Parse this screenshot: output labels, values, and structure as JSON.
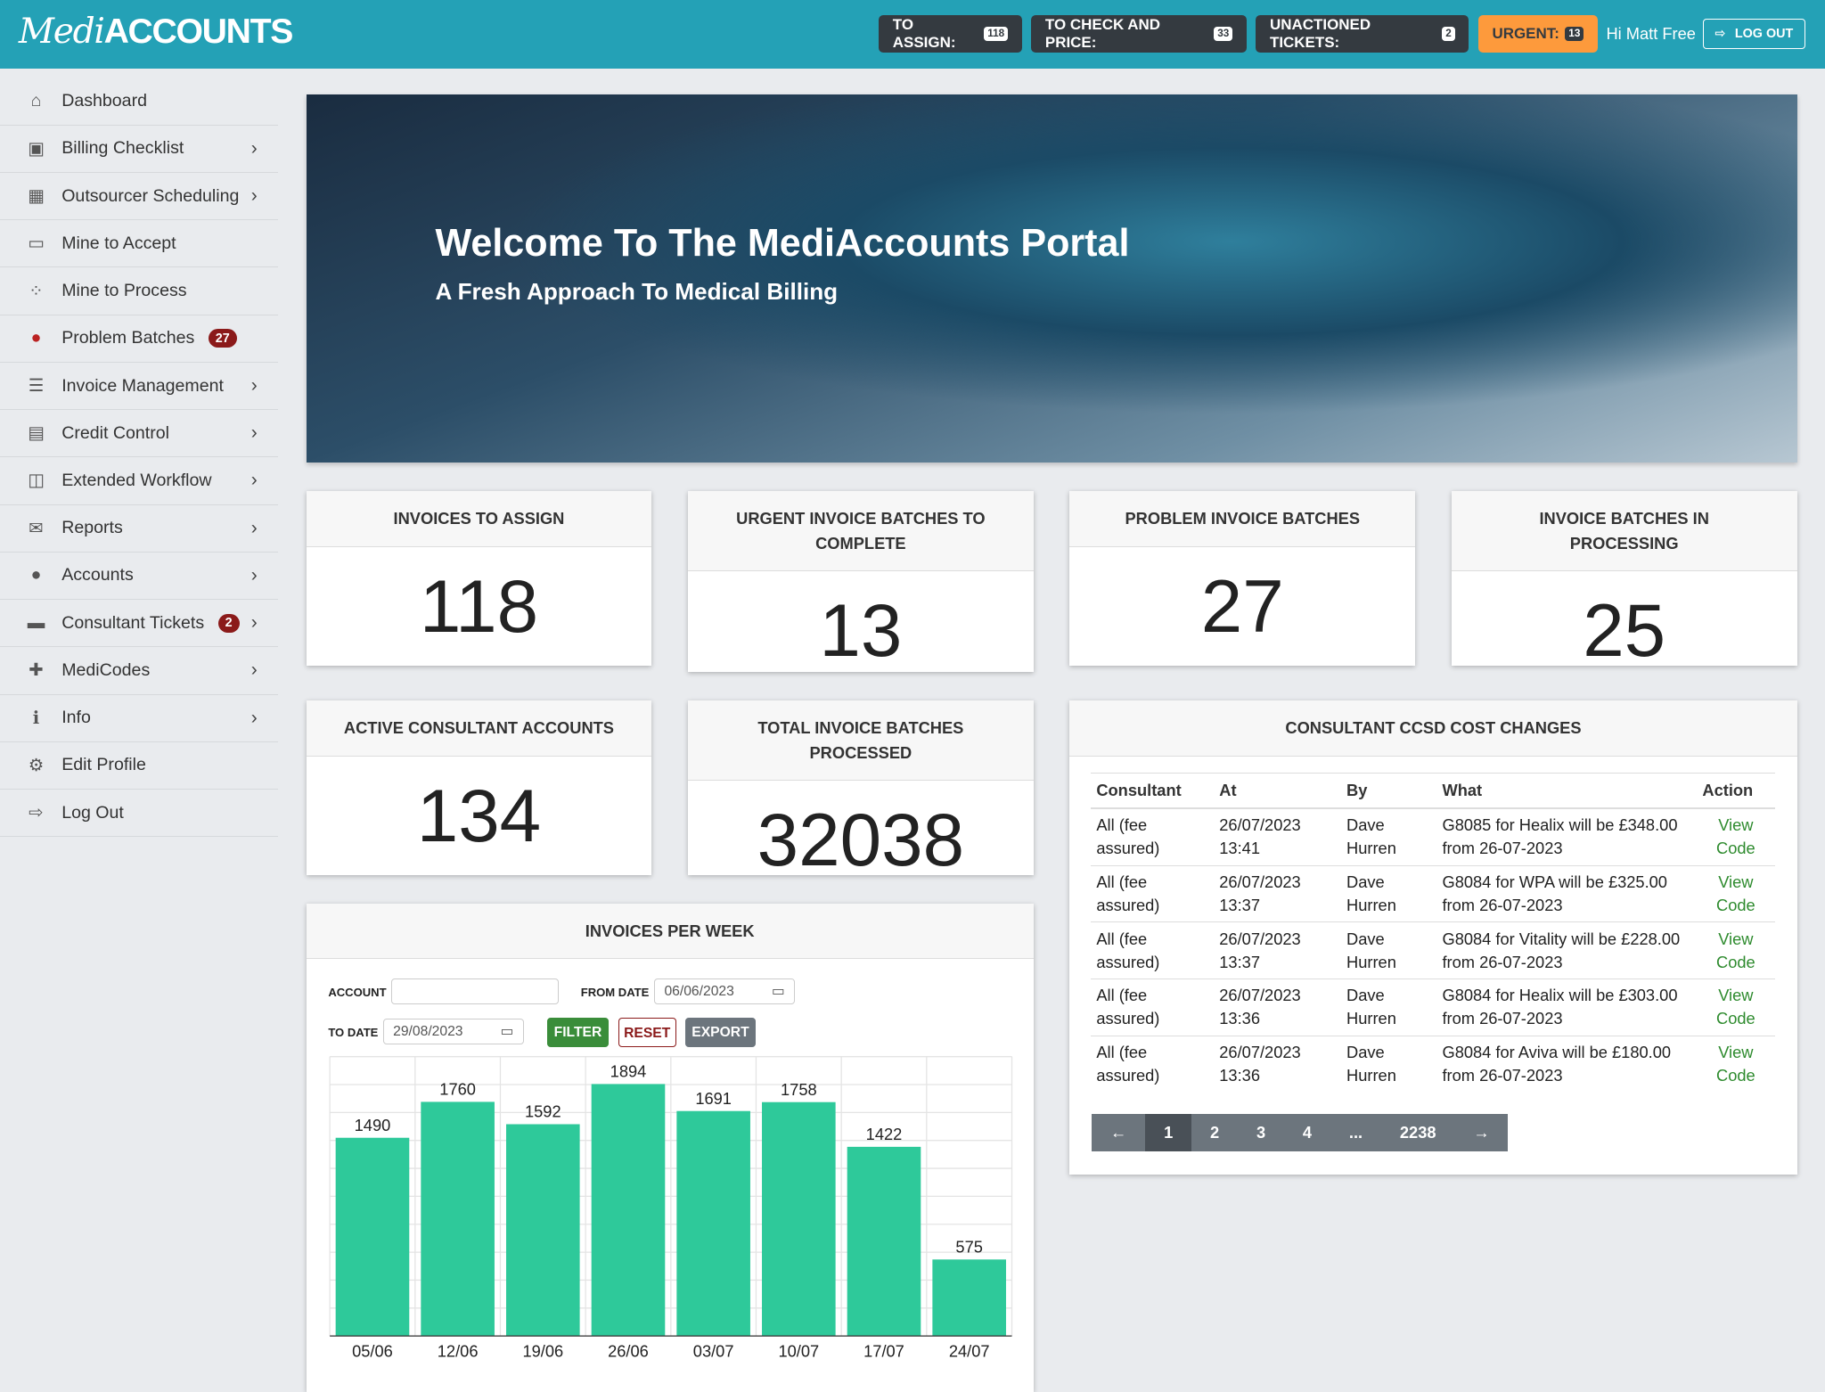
{
  "header": {
    "logo": "MediACCOUNTS",
    "logo_script": "Medi",
    "logo_caps": "ACCOUNTS",
    "buttons": [
      {
        "label": "TO ASSIGN:",
        "count": "118"
      },
      {
        "label": "TO CHECK AND PRICE:",
        "count": "33"
      },
      {
        "label": "UNACTIONED TICKETS:",
        "count": "2"
      },
      {
        "label": "URGENT:",
        "count": "13"
      }
    ],
    "greeting": "Hi Matt Free",
    "logout": "LOG OUT"
  },
  "sidebar": {
    "items": [
      {
        "label": "Dashboard",
        "icon": "home-icon"
      },
      {
        "label": "Billing Checklist",
        "icon": "calendar-check-icon"
      },
      {
        "label": "Outsourcer Scheduling",
        "icon": "calendar-icon"
      },
      {
        "label": "Mine to Accept",
        "icon": "inbox-icon"
      },
      {
        "label": "Mine to Process",
        "icon": "spinner-icon"
      },
      {
        "label": "Problem Batches",
        "icon": "exclamation-icon",
        "badge": "27"
      },
      {
        "label": "Invoice Management",
        "icon": "list-icon"
      },
      {
        "label": "Credit Control",
        "icon": "file-icon"
      },
      {
        "label": "Extended Workflow",
        "icon": "columns-icon"
      },
      {
        "label": "Reports",
        "icon": "envelope-icon"
      },
      {
        "label": "Accounts",
        "icon": "user-icon"
      },
      {
        "label": "Consultant Tickets",
        "icon": "ticket-icon",
        "badge": "2"
      },
      {
        "label": "MediCodes",
        "icon": "medical-icon"
      },
      {
        "label": "Info",
        "icon": "info-icon"
      },
      {
        "label": "Edit Profile",
        "icon": "user-cog-icon"
      },
      {
        "label": "Log Out",
        "icon": "sign-out-icon"
      }
    ]
  },
  "hero": {
    "title": "Welcome To The MediAccounts Portal",
    "subtitle": "A Fresh Approach To Medical Billing"
  },
  "stats": [
    {
      "title": "INVOICES TO ASSIGN",
      "value": "118"
    },
    {
      "title": "URGENT INVOICE BATCHES TO COMPLETE",
      "value": "13"
    },
    {
      "title": "PROBLEM INVOICE BATCHES",
      "value": "27"
    },
    {
      "title": "INVOICE BATCHES IN PROCESSING",
      "value": "25"
    },
    {
      "title": "ACTIVE CONSULTANT ACCOUNTS",
      "value": "134"
    },
    {
      "title": "TOTAL INVOICE BATCHES PROCESSED",
      "value": "32038"
    }
  ],
  "ccsd": {
    "title": "CONSULTANT CCSD COST CHANGES",
    "columns": [
      "Consultant",
      "At",
      "By",
      "What",
      "Action"
    ],
    "rows": [
      [
        "All (fee assured)",
        "26/07/2023 13:41",
        "Dave Hurren",
        "G8085 for Healix will be £348.00 from 26-07-2023",
        "View Code"
      ],
      [
        "All (fee assured)",
        "26/07/2023 13:37",
        "Dave Hurren",
        "G8084 for WPA will be £325.00 from 26-07-2023",
        "View Code"
      ],
      [
        "All (fee assured)",
        "26/07/2023 13:37",
        "Dave Hurren",
        "G8084 for Vitality will be £228.00 from 26-07-2023",
        "View Code"
      ],
      [
        "All (fee assured)",
        "26/07/2023 13:36",
        "Dave Hurren",
        "G8084 for Healix will be £303.00 from 26-07-2023",
        "View Code"
      ],
      [
        "All (fee assured)",
        "26/07/2023 13:36",
        "Dave Hurren",
        "G8084 for Aviva will be £180.00 from 26-07-2023",
        "View Code"
      ]
    ],
    "pagination": [
      "←",
      "1",
      "2",
      "3",
      "4",
      "...",
      "2238",
      "→"
    ]
  },
  "invoices_week": {
    "title": "INVOICES PER WEEK",
    "account_label": "ACCOUNT",
    "account_value": "",
    "from_label": "FROM DATE",
    "from_value": "06/06/2023",
    "to_label": "TO DATE",
    "to_value": "29/08/2023",
    "filter": "FILTER",
    "reset": "RESET",
    "export": "EXPORT"
  },
  "chart_data": {
    "type": "bar",
    "title": "INVOICES PER WEEK",
    "categories": [
      "05/06",
      "12/06",
      "19/06",
      "26/06",
      "03/07",
      "10/07",
      "17/07",
      "24/07"
    ],
    "values": [
      1490,
      1760,
      1592,
      1894,
      1691,
      1758,
      1422,
      575
    ],
    "ylim": [
      0,
      2100
    ],
    "grid": true,
    "color": "#2ec99a"
  }
}
